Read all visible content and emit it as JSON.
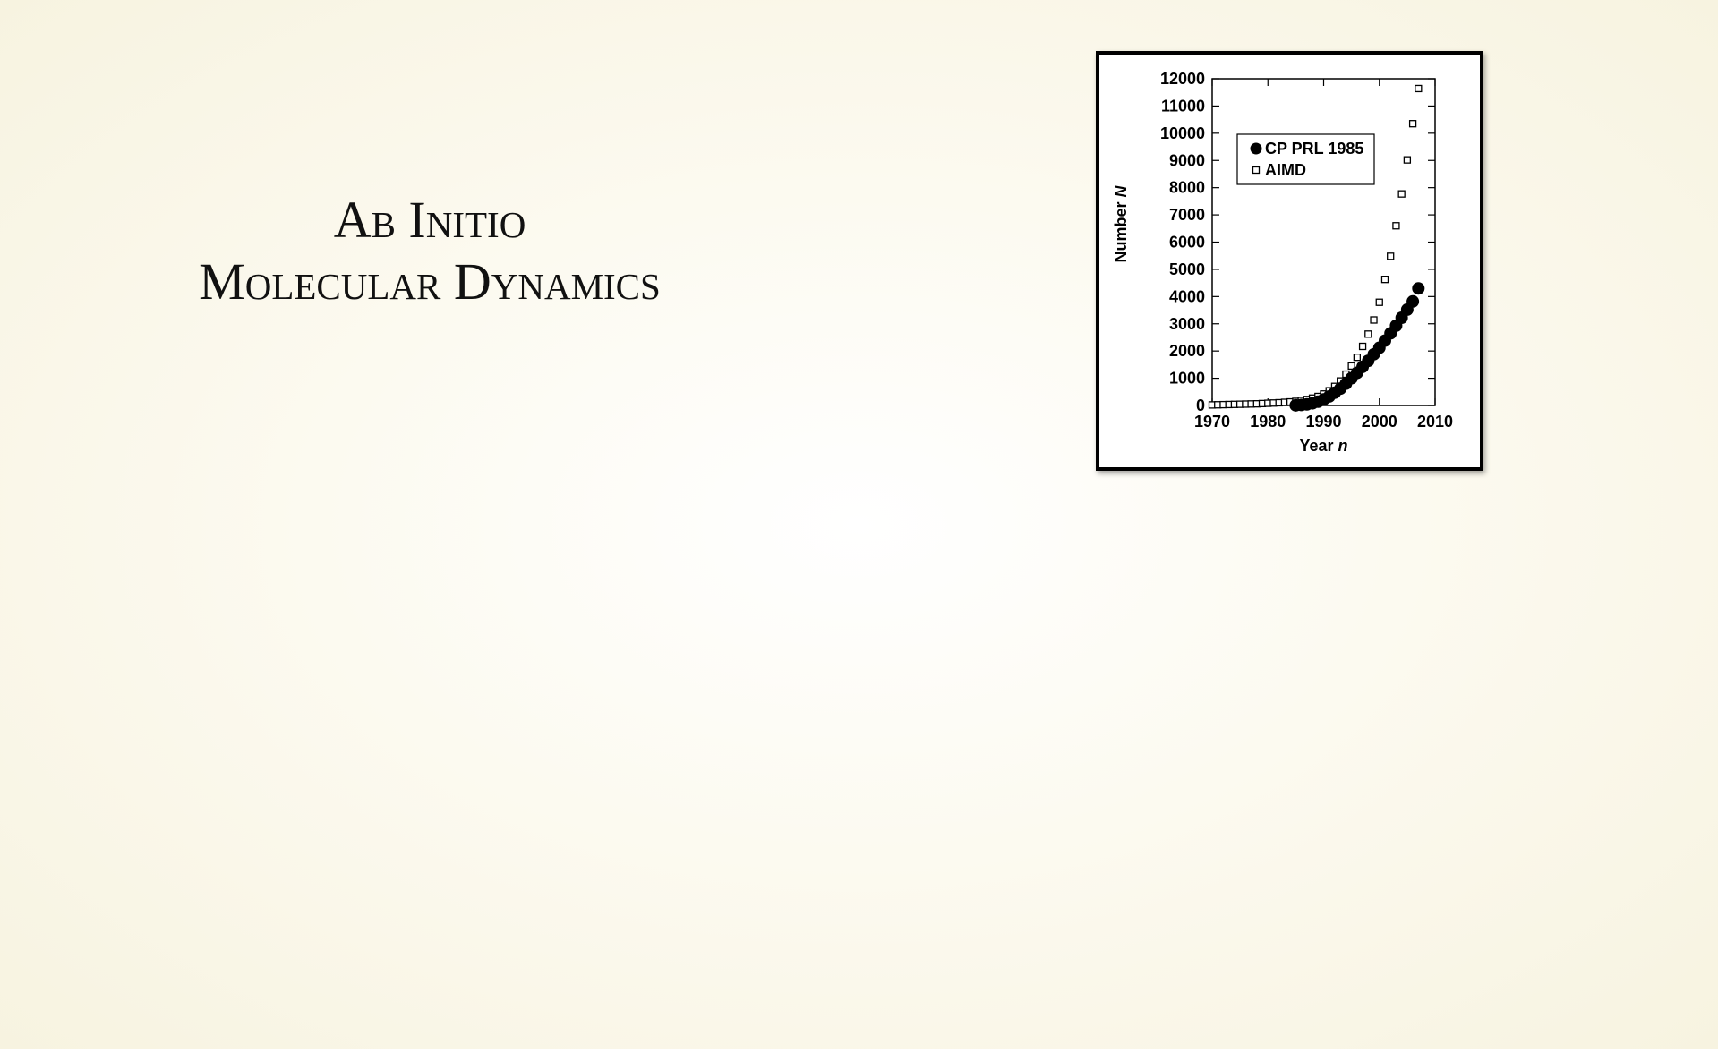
{
  "slide_title": [
    "Ab Initio",
    "Molecular Dynamics"
  ],
  "chart_data": {
    "type": "scatter",
    "xlabel": {
      "text": "Year",
      "var": "n"
    },
    "ylabel": {
      "text": "Number",
      "var": "N"
    },
    "xlim": [
      1970,
      2010
    ],
    "xticks": [
      1970,
      1980,
      1990,
      2000,
      2010
    ],
    "ylim": [
      0,
      12000
    ],
    "yticks": [
      0,
      1000,
      2000,
      3000,
      4000,
      5000,
      6000,
      7000,
      8000,
      9000,
      10000,
      11000,
      12000
    ],
    "legend": "upper left",
    "series": [
      {
        "name": "CP PRL 1985",
        "color": "#000000",
        "marker": "circle",
        "x": [
          1985,
          1986,
          1987,
          1988,
          1989,
          1990,
          1991,
          1992,
          1993,
          1994,
          1995,
          1996,
          1997,
          1998,
          1999,
          2000,
          2001,
          2002,
          2003,
          2004,
          2005,
          2006,
          2007
        ],
        "values": [
          5,
          20,
          40,
          80,
          140,
          220,
          330,
          470,
          620,
          800,
          1000,
          1200,
          1420,
          1640,
          1880,
          2120,
          2380,
          2650,
          2930,
          3220,
          3520,
          3820,
          4300
        ]
      },
      {
        "name": "AIMD",
        "color": "#000000",
        "marker": "square",
        "x": [
          1970,
          1971,
          1972,
          1973,
          1974,
          1975,
          1976,
          1977,
          1978,
          1979,
          1980,
          1981,
          1982,
          1983,
          1984,
          1985,
          1986,
          1987,
          1988,
          1989,
          1990,
          1991,
          1992,
          1993,
          1994,
          1995,
          1996,
          1997,
          1998,
          1999,
          2000,
          2001,
          2002,
          2003,
          2004,
          2005,
          2006,
          2007
        ],
        "values": [
          20,
          25,
          30,
          35,
          40,
          45,
          50,
          55,
          60,
          70,
          80,
          90,
          100,
          115,
          130,
          150,
          180,
          220,
          270,
          330,
          420,
          540,
          700,
          900,
          1150,
          1450,
          1770,
          2170,
          2620,
          3140,
          3790,
          4630,
          5480,
          6600,
          7770,
          9020,
          10350,
          11640
        ]
      }
    ]
  }
}
